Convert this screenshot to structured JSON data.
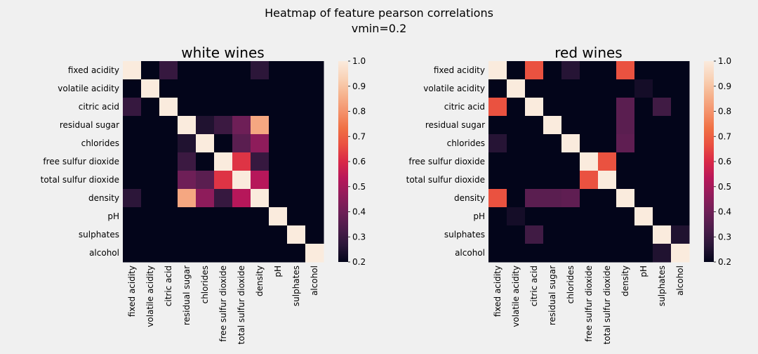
{
  "figure": {
    "title_line1": "Heatmap of feature pearson correlations",
    "title_line2": "vmin=0.2",
    "background": "#f0f0f0"
  },
  "colormap": {
    "name": "rocket",
    "vmin": 0.2,
    "vmax": 1.0,
    "stops": [
      "#03051a",
      "#2a1638",
      "#4c1d4b",
      "#6e1f57",
      "#921c5b",
      "#b8175a",
      "#d92847",
      "#ea5040",
      "#f07145",
      "#f4936c",
      "#f6b48f",
      "#f9d3b8",
      "#faebdd"
    ]
  },
  "chart_data": [
    {
      "type": "heatmap",
      "title": "white wines",
      "features": [
        "fixed acidity",
        "volatile acidity",
        "citric acid",
        "residual sugar",
        "chlorides",
        "free sulfur dioxide",
        "total sulfur dioxide",
        "density",
        "pH",
        "sulphates",
        "alcohol"
      ],
      "values": [
        [
          1.0,
          0.2,
          0.29,
          0.2,
          0.2,
          0.2,
          0.2,
          0.27,
          0.2,
          0.2,
          0.2
        ],
        [
          0.2,
          1.0,
          0.2,
          0.2,
          0.2,
          0.2,
          0.2,
          0.2,
          0.2,
          0.2,
          0.2
        ],
        [
          0.29,
          0.2,
          1.0,
          0.2,
          0.2,
          0.2,
          0.2,
          0.2,
          0.2,
          0.2,
          0.2
        ],
        [
          0.2,
          0.2,
          0.2,
          1.0,
          0.25,
          0.3,
          0.4,
          0.84,
          0.2,
          0.2,
          0.2
        ],
        [
          0.2,
          0.2,
          0.2,
          0.25,
          1.0,
          0.2,
          0.36,
          0.46,
          0.2,
          0.2,
          0.2
        ],
        [
          0.2,
          0.2,
          0.2,
          0.3,
          0.2,
          1.0,
          0.62,
          0.29,
          0.2,
          0.2,
          0.2
        ],
        [
          0.2,
          0.2,
          0.2,
          0.4,
          0.36,
          0.62,
          1.0,
          0.53,
          0.2,
          0.2,
          0.2
        ],
        [
          0.27,
          0.2,
          0.2,
          0.84,
          0.46,
          0.29,
          0.53,
          1.0,
          0.2,
          0.2,
          0.2
        ],
        [
          0.2,
          0.2,
          0.2,
          0.2,
          0.2,
          0.2,
          0.2,
          0.2,
          1.0,
          0.2,
          0.2
        ],
        [
          0.2,
          0.2,
          0.2,
          0.2,
          0.2,
          0.2,
          0.2,
          0.2,
          0.2,
          1.0,
          0.2
        ],
        [
          0.2,
          0.2,
          0.2,
          0.2,
          0.2,
          0.2,
          0.2,
          0.2,
          0.2,
          0.2,
          1.0
        ]
      ],
      "colorbar_ticks": [
        "1.0",
        "0.9",
        "0.8",
        "0.7",
        "0.6",
        "0.5",
        "0.4",
        "0.3",
        "0.2"
      ]
    },
    {
      "type": "heatmap",
      "title": "red wines",
      "features": [
        "fixed acidity",
        "volatile acidity",
        "citric acid",
        "residual sugar",
        "chlorides",
        "free sulfur dioxide",
        "total sulfur dioxide",
        "density",
        "pH",
        "sulphates",
        "alcohol"
      ],
      "values": [
        [
          1.0,
          0.2,
          0.67,
          0.2,
          0.26,
          0.2,
          0.2,
          0.67,
          0.2,
          0.2,
          0.2
        ],
        [
          0.2,
          1.0,
          0.2,
          0.2,
          0.2,
          0.2,
          0.2,
          0.2,
          0.23,
          0.2,
          0.2
        ],
        [
          0.67,
          0.2,
          1.0,
          0.2,
          0.2,
          0.2,
          0.2,
          0.36,
          0.2,
          0.31,
          0.2
        ],
        [
          0.2,
          0.2,
          0.2,
          1.0,
          0.2,
          0.2,
          0.2,
          0.36,
          0.2,
          0.2,
          0.2
        ],
        [
          0.26,
          0.2,
          0.2,
          0.2,
          1.0,
          0.2,
          0.2,
          0.37,
          0.2,
          0.2,
          0.2
        ],
        [
          0.2,
          0.2,
          0.2,
          0.2,
          0.2,
          1.0,
          0.67,
          0.2,
          0.2,
          0.2,
          0.2
        ],
        [
          0.2,
          0.2,
          0.2,
          0.2,
          0.2,
          0.67,
          1.0,
          0.2,
          0.2,
          0.2,
          0.2
        ],
        [
          0.67,
          0.2,
          0.36,
          0.36,
          0.37,
          0.2,
          0.2,
          1.0,
          0.2,
          0.2,
          0.2
        ],
        [
          0.2,
          0.23,
          0.2,
          0.2,
          0.2,
          0.2,
          0.2,
          0.2,
          1.0,
          0.2,
          0.2
        ],
        [
          0.2,
          0.2,
          0.31,
          0.2,
          0.2,
          0.2,
          0.2,
          0.2,
          0.2,
          1.0,
          0.25
        ],
        [
          0.2,
          0.2,
          0.2,
          0.2,
          0.2,
          0.2,
          0.2,
          0.2,
          0.2,
          0.25,
          1.0
        ]
      ],
      "colorbar_ticks": [
        "1.0",
        "0.9",
        "0.8",
        "0.7",
        "0.6",
        "0.5",
        "0.4",
        "0.3",
        "0.2"
      ]
    }
  ]
}
